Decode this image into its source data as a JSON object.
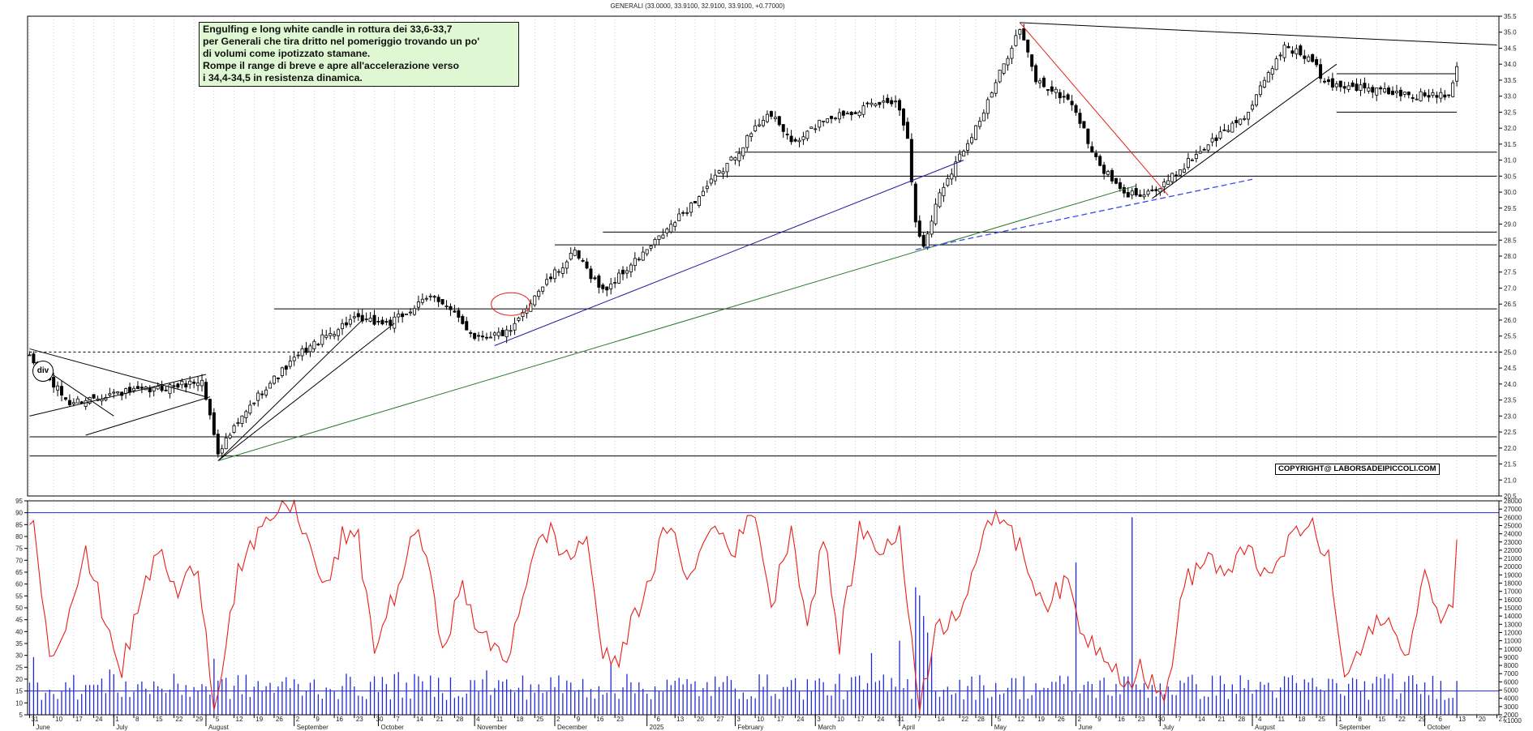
{
  "header": {
    "title": "GENERALI (33.0000, 33.9100, 32.9100, 33.9100, +0.77000)"
  },
  "annotation": {
    "lines": [
      "Engulfing  e long white candle in rottura dei 33,6-33,7",
      "per Generali che tira dritto nel pomeriggio trovando un po'",
      "di volumi come ipotizzato stamane.",
      "Rompe il range di breve e apre all'accelerazione verso",
      "i 34,4-34,5 in resistenza dinamica."
    ]
  },
  "copyright": "COPYRIGHT@ LABORSADEIPICCOLI.COM",
  "div_label": "div",
  "colors": {
    "background": "#ffffff",
    "candle": "#000000",
    "oscillator": "#e8201a",
    "volume": "#1f2ad6",
    "trend_blue": "#1a1aa0",
    "trend_green": "#2a7a2a",
    "trend_red": "#e8201a",
    "trend_dashed": "#3a4ae8",
    "annotation_bg": "#dff7d3"
  },
  "chart_data": [
    {
      "type": "candlestick",
      "title": "GENERALI (33.0000, 33.9100, 32.9100, 33.9100, +0.77000)",
      "symbol": "GENERALI",
      "last": {
        "open": 33.0,
        "high": 33.91,
        "low": 32.91,
        "close": 33.91,
        "change": 0.77
      },
      "ylim": [
        20.5,
        35.5
      ],
      "yticks": [
        "20.5",
        "21.0",
        "21.5",
        "22.0",
        "22.5",
        "23.0",
        "23.5",
        "24.0",
        "24.5",
        "25.0",
        "25.5",
        "26.0",
        "26.5",
        "27.0",
        "27.5",
        "28.0",
        "28.5",
        "29.0",
        "29.5",
        "30.0",
        "30.5",
        "31.0",
        "31.5",
        "32.0",
        "32.5",
        "33.0",
        "33.5",
        "34.0",
        "34.5",
        "35.0",
        "35.5"
      ],
      "anchors": [
        [
          "2024-05-31",
          24.8
        ],
        [
          "2024-06-14",
          23.4
        ],
        [
          "2024-06-28",
          23.7
        ],
        [
          "2024-07-12",
          23.8
        ],
        [
          "2024-07-31",
          24.1
        ],
        [
          "2024-08-06",
          21.9
        ],
        [
          "2024-08-21",
          23.8
        ],
        [
          "2024-09-04",
          25.0
        ],
        [
          "2024-09-20",
          26.0
        ],
        [
          "2024-10-04",
          25.9
        ],
        [
          "2024-10-21",
          26.8
        ],
        [
          "2024-11-04",
          25.5
        ],
        [
          "2024-11-15",
          25.6
        ],
        [
          "2024-11-25",
          26.8
        ],
        [
          "2024-12-09",
          28.1
        ],
        [
          "2024-12-18",
          26.9
        ],
        [
          "2025-01-03",
          28.3
        ],
        [
          "2025-01-17",
          29.6
        ],
        [
          "2025-01-31",
          31.0
        ],
        [
          "2025-02-13",
          32.5
        ],
        [
          "2025-02-24",
          31.5
        ],
        [
          "2025-03-05",
          32.3
        ],
        [
          "2025-03-13",
          32.5
        ],
        [
          "2025-03-31",
          32.9
        ],
        [
          "2025-04-03",
          31.8
        ],
        [
          "2025-04-07",
          29.0
        ],
        [
          "2025-04-09",
          28.3
        ],
        [
          "2025-04-15",
          30.0
        ],
        [
          "2025-04-30",
          32.5
        ],
        [
          "2025-05-09",
          34.6
        ],
        [
          "2025-05-13",
          35.1
        ],
        [
          "2025-05-19",
          33.5
        ],
        [
          "2025-05-30",
          32.8
        ],
        [
          "2025-06-09",
          31.0
        ],
        [
          "2025-06-18",
          29.9
        ],
        [
          "2025-07-01",
          30.1
        ],
        [
          "2025-07-14",
          31.2
        ],
        [
          "2025-07-31",
          32.5
        ],
        [
          "2025-08-13",
          34.6
        ],
        [
          "2025-08-22",
          34.1
        ],
        [
          "2025-08-27",
          33.4
        ],
        [
          "2025-09-05",
          33.3
        ],
        [
          "2025-09-26",
          33.0
        ],
        [
          "2025-10-09",
          33.1
        ],
        [
          "2025-10-13",
          33.91
        ]
      ],
      "levels": [
        {
          "from": "2024-05-31",
          "to": "2025-10-27",
          "y": 25.0,
          "style": "dotted"
        },
        {
          "from": "2024-08-26",
          "to": "2025-10-27",
          "y": 26.35
        },
        {
          "from": "2024-12-02",
          "to": "2025-10-27",
          "y": 28.35
        },
        {
          "from": "2024-12-18",
          "to": "2025-10-27",
          "y": 28.75
        },
        {
          "from": "2025-01-27",
          "to": "2025-10-27",
          "y": 30.5
        },
        {
          "from": "2025-02-03",
          "to": "2025-10-27",
          "y": 31.25
        },
        {
          "from": "2024-05-31",
          "to": "2025-10-27",
          "y": 22.35
        },
        {
          "from": "2024-05-31",
          "to": "2025-10-27",
          "y": 21.75
        },
        {
          "from": "2025-09-01",
          "to": "2025-10-13",
          "y": 33.7
        },
        {
          "from": "2025-09-01",
          "to": "2025-10-13",
          "y": 32.5
        }
      ],
      "trendlines": [
        {
          "color": "trend_black",
          "points": [
            [
              "2024-05-31",
              25.1
            ],
            [
              "2024-08-01",
              23.6
            ]
          ]
        },
        {
          "color": "trend_black",
          "points": [
            [
              "2024-05-31",
              23.0
            ],
            [
              "2024-08-01",
              24.3
            ]
          ]
        },
        {
          "color": "trend_black",
          "points": [
            [
              "2024-06-03",
              24.7
            ],
            [
              "2024-07-01",
              23.0
            ]
          ]
        },
        {
          "color": "trend_black",
          "points": [
            [
              "2024-06-20",
              22.4
            ],
            [
              "2024-08-02",
              23.6
            ]
          ]
        },
        {
          "color": "trend_black",
          "points": [
            [
              "2024-08-06",
              21.6
            ],
            [
              "2024-09-25",
              26.0
            ]
          ]
        },
        {
          "color": "trend_black",
          "points": [
            [
              "2024-08-06",
              21.6
            ],
            [
              "2024-10-07",
              25.9
            ]
          ]
        },
        {
          "color": "trend_blue",
          "points": [
            [
              "2024-11-11",
              25.2
            ],
            [
              "2025-04-23",
              31.0
            ]
          ]
        },
        {
          "color": "trend_green",
          "points": [
            [
              "2024-08-06",
              21.6
            ],
            [
              "2025-06-23",
              30.2
            ]
          ]
        },
        {
          "color": "trend_red",
          "points": [
            [
              "2025-05-13",
              35.3
            ],
            [
              "2025-07-03",
              29.9
            ]
          ]
        },
        {
          "color": "trend_black",
          "points": [
            [
              "2025-05-13",
              35.3
            ],
            [
              "2025-10-27",
              34.6
            ]
          ]
        },
        {
          "color": "trend_black",
          "points": [
            [
              "2025-06-27",
              29.8
            ],
            [
              "2025-09-01",
              34.0
            ]
          ]
        },
        {
          "color": "trend_dashed",
          "points": [
            [
              "2025-04-07",
              28.2
            ],
            [
              "2025-08-01",
              30.4
            ]
          ]
        }
      ],
      "circle": {
        "date": "2024-11-15",
        "y": 26.5
      }
    },
    {
      "type": "line+bar",
      "name_oscillator": "",
      "ylim_left": [
        5,
        95
      ],
      "yticks_left": [
        "5",
        "10",
        "15",
        "20",
        "25",
        "30",
        "35",
        "40",
        "45",
        "50",
        "55",
        "60",
        "65",
        "70",
        "75",
        "80",
        "85",
        "90",
        "95"
      ],
      "ylim_right": [
        2000,
        28000
      ],
      "yticks_right": [
        "2000",
        "3000",
        "4000",
        "5000",
        "6000",
        "7000",
        "8000",
        "9000",
        "10000",
        "11000",
        "12000",
        "13000",
        "14000",
        "15000",
        "16000",
        "17000",
        "18000",
        "19000",
        "20000",
        "21000",
        "22000",
        "23000",
        "24000",
        "25000",
        "26000",
        "27000",
        "28000"
      ],
      "right_unit_label": "x1000",
      "oscillator_levels": [
        90,
        15
      ],
      "oscillator_anchors": [
        [
          "2024-05-31",
          82
        ],
        [
          "2024-06-03",
          88
        ],
        [
          "2024-06-07",
          30
        ],
        [
          "2024-06-12",
          40
        ],
        [
          "2024-06-20",
          72
        ],
        [
          "2024-06-27",
          45
        ],
        [
          "2024-07-03",
          24
        ],
        [
          "2024-07-10",
          55
        ],
        [
          "2024-07-16",
          75
        ],
        [
          "2024-07-23",
          55
        ],
        [
          "2024-07-30",
          70
        ],
        [
          "2024-08-05",
          8
        ],
        [
          "2024-08-13",
          65
        ],
        [
          "2024-08-26",
          90
        ],
        [
          "2024-09-02",
          95
        ],
        [
          "2024-09-06",
          74
        ],
        [
          "2024-09-12",
          57
        ],
        [
          "2024-09-18",
          80
        ],
        [
          "2024-09-24",
          78
        ],
        [
          "2024-09-30",
          33
        ],
        [
          "2024-10-08",
          60
        ],
        [
          "2024-10-15",
          85
        ],
        [
          "2024-10-23",
          35
        ],
        [
          "2024-10-30",
          58
        ],
        [
          "2024-11-06",
          37
        ],
        [
          "2024-11-14",
          28
        ],
        [
          "2024-11-22",
          70
        ],
        [
          "2024-11-29",
          83
        ],
        [
          "2024-12-05",
          70
        ],
        [
          "2024-12-12",
          80
        ],
        [
          "2024-12-18",
          30
        ],
        [
          "2024-12-23",
          25
        ],
        [
          "2025-01-02",
          60
        ],
        [
          "2025-01-09",
          84
        ],
        [
          "2025-01-17",
          62
        ],
        [
          "2025-01-24",
          85
        ],
        [
          "2025-02-03",
          75
        ],
        [
          "2025-02-10",
          92
        ],
        [
          "2025-02-14",
          50
        ],
        [
          "2025-02-21",
          85
        ],
        [
          "2025-02-27",
          42
        ],
        [
          "2025-03-05",
          80
        ],
        [
          "2025-03-11",
          35
        ],
        [
          "2025-03-18",
          83
        ],
        [
          "2025-03-25",
          75
        ],
        [
          "2025-04-01",
          80
        ],
        [
          "2025-04-08",
          10
        ],
        [
          "2025-04-14",
          40
        ],
        [
          "2025-04-22",
          50
        ],
        [
          "2025-04-30",
          80
        ],
        [
          "2025-05-07",
          90
        ],
        [
          "2025-05-13",
          75
        ],
        [
          "2025-05-21",
          52
        ],
        [
          "2025-05-29",
          60
        ],
        [
          "2025-06-04",
          38
        ],
        [
          "2025-06-12",
          30
        ],
        [
          "2025-06-19",
          18
        ],
        [
          "2025-06-24",
          25
        ],
        [
          "2025-07-02",
          10
        ],
        [
          "2025-07-09",
          60
        ],
        [
          "2025-07-17",
          72
        ],
        [
          "2025-07-24",
          62
        ],
        [
          "2025-07-31",
          78
        ],
        [
          "2025-08-07",
          60
        ],
        [
          "2025-08-14",
          78
        ],
        [
          "2025-08-21",
          86
        ],
        [
          "2025-08-28",
          70
        ],
        [
          "2025-09-03",
          20
        ],
        [
          "2025-09-10",
          35
        ],
        [
          "2025-09-17",
          48
        ],
        [
          "2025-09-24",
          28
        ],
        [
          "2025-10-01",
          65
        ],
        [
          "2025-10-06",
          45
        ],
        [
          "2025-10-10",
          55
        ],
        [
          "2025-10-13",
          75
        ]
      ],
      "volume_spikes": [
        [
          "2024-06-03",
          9000
        ],
        [
          "2024-06-28",
          7500
        ],
        [
          "2024-08-05",
          8800
        ],
        [
          "2024-10-08",
          7200
        ],
        [
          "2024-11-07",
          7400
        ],
        [
          "2024-12-20",
          8200
        ],
        [
          "2025-03-21",
          9500
        ],
        [
          "2025-04-01",
          11000
        ],
        [
          "2025-04-07",
          17500
        ],
        [
          "2025-04-08",
          16500
        ],
        [
          "2025-04-09",
          14000
        ],
        [
          "2025-04-10",
          12000
        ],
        [
          "2025-04-11",
          9500
        ],
        [
          "2025-06-02",
          20500
        ],
        [
          "2025-06-20",
          26000
        ],
        [
          "2025-09-19",
          7000
        ]
      ]
    }
  ],
  "x_axis": {
    "day_ticks": [
      [
        "2024-05-31",
        "31"
      ],
      [
        "2024-06-10",
        "10"
      ],
      [
        "2024-06-17",
        "17"
      ],
      [
        "2024-06-24",
        "24"
      ],
      [
        "2024-07-01",
        "1"
      ],
      [
        "2024-07-08",
        "8"
      ],
      [
        "2024-07-15",
        "15"
      ],
      [
        "2024-07-22",
        "22"
      ],
      [
        "2024-07-29",
        "29"
      ],
      [
        "2024-08-05",
        "5"
      ],
      [
        "2024-08-12",
        "12"
      ],
      [
        "2024-08-19",
        "19"
      ],
      [
        "2024-08-26",
        "26"
      ],
      [
        "2024-09-02",
        "2"
      ],
      [
        "2024-09-09",
        "9"
      ],
      [
        "2024-09-16",
        "16"
      ],
      [
        "2024-09-23",
        "23"
      ],
      [
        "2024-09-30",
        "30"
      ],
      [
        "2024-10-07",
        "7"
      ],
      [
        "2024-10-14",
        "14"
      ],
      [
        "2024-10-21",
        "21"
      ],
      [
        "2024-10-28",
        "28"
      ],
      [
        "2024-11-04",
        "4"
      ],
      [
        "2024-11-11",
        "11"
      ],
      [
        "2024-11-18",
        "18"
      ],
      [
        "2024-11-25",
        "25"
      ],
      [
        "2024-12-02",
        "2"
      ],
      [
        "2024-12-09",
        "9"
      ],
      [
        "2024-12-16",
        "16"
      ],
      [
        "2024-12-23",
        "23"
      ],
      [
        "2025-01-06",
        "6"
      ],
      [
        "2025-01-13",
        "13"
      ],
      [
        "2025-01-20",
        "20"
      ],
      [
        "2025-01-27",
        "27"
      ],
      [
        "2025-02-03",
        "3"
      ],
      [
        "2025-02-10",
        "10"
      ],
      [
        "2025-02-17",
        "17"
      ],
      [
        "2025-02-24",
        "24"
      ],
      [
        "2025-03-03",
        "3"
      ],
      [
        "2025-03-10",
        "10"
      ],
      [
        "2025-03-17",
        "17"
      ],
      [
        "2025-03-24",
        "24"
      ],
      [
        "2025-03-31",
        "31"
      ],
      [
        "2025-04-07",
        "7"
      ],
      [
        "2025-04-14",
        "14"
      ],
      [
        "2025-04-22",
        "22"
      ],
      [
        "2025-04-28",
        "28"
      ],
      [
        "2025-05-05",
        "5"
      ],
      [
        "2025-05-12",
        "12"
      ],
      [
        "2025-05-19",
        "19"
      ],
      [
        "2025-05-26",
        "26"
      ],
      [
        "2025-06-02",
        "2"
      ],
      [
        "2025-06-09",
        "9"
      ],
      [
        "2025-06-16",
        "16"
      ],
      [
        "2025-06-23",
        "23"
      ],
      [
        "2025-06-30",
        "30"
      ],
      [
        "2025-07-07",
        "7"
      ],
      [
        "2025-07-14",
        "14"
      ],
      [
        "2025-07-21",
        "21"
      ],
      [
        "2025-07-28",
        "28"
      ],
      [
        "2025-08-04",
        "4"
      ],
      [
        "2025-08-11",
        "11"
      ],
      [
        "2025-08-18",
        "18"
      ],
      [
        "2025-08-25",
        "25"
      ],
      [
        "2025-09-01",
        "1"
      ],
      [
        "2025-09-08",
        "8"
      ],
      [
        "2025-09-15",
        "15"
      ],
      [
        "2025-09-22",
        "22"
      ],
      [
        "2025-09-29",
        "29"
      ],
      [
        "2025-10-06",
        "6"
      ],
      [
        "2025-10-13",
        "13"
      ],
      [
        "2025-10-20",
        "20"
      ],
      [
        "2025-10-27",
        "27"
      ]
    ],
    "month_labels": [
      [
        "2024-06-03",
        "June"
      ],
      [
        "2024-07-01",
        "July"
      ],
      [
        "2024-08-01",
        "August"
      ],
      [
        "2024-09-02",
        "September"
      ],
      [
        "2024-10-01",
        "October"
      ],
      [
        "2024-11-04",
        "November"
      ],
      [
        "2024-12-02",
        "December"
      ],
      [
        "2025-01-02",
        "2025"
      ],
      [
        "2025-02-03",
        "February"
      ],
      [
        "2025-03-03",
        "March"
      ],
      [
        "2025-04-01",
        "April"
      ],
      [
        "2025-05-02",
        "May"
      ],
      [
        "2025-06-02",
        "June"
      ],
      [
        "2025-07-01",
        "July"
      ],
      [
        "2025-08-01",
        "August"
      ],
      [
        "2025-09-01",
        "September"
      ],
      [
        "2025-10-01",
        "October"
      ]
    ]
  }
}
